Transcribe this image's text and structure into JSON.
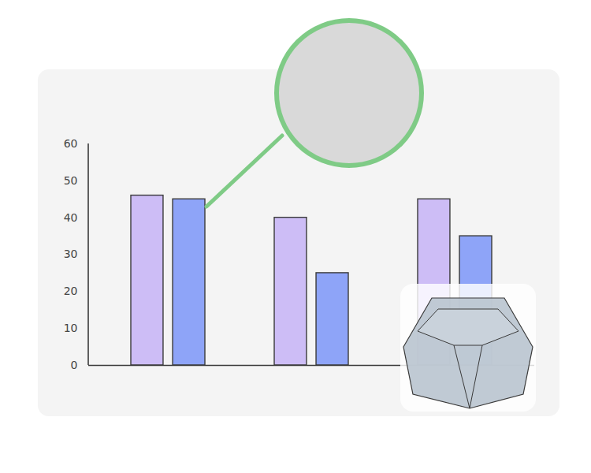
{
  "chart_data": {
    "type": "bar",
    "categories": [
      null,
      null,
      null
    ],
    "series": [
      {
        "color": "#cdbdf6",
        "values": [
          46,
          40,
          45
        ]
      },
      {
        "color": "#8ea4f8",
        "values": [
          45,
          25,
          35
        ]
      }
    ],
    "ylim": [
      0,
      60
    ],
    "yticks": [
      0,
      10,
      20,
      30,
      40,
      50,
      60
    ],
    "grid": false
  }
}
